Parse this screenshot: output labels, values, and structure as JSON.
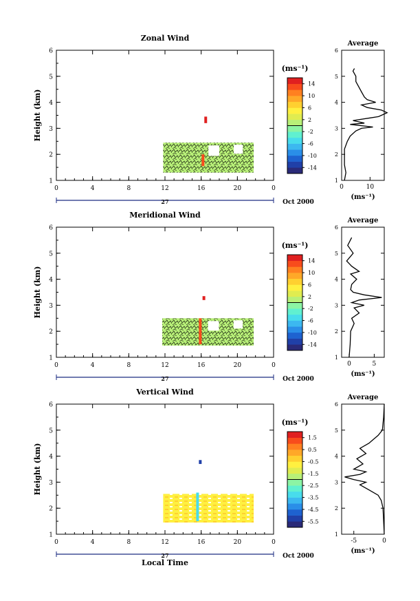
{
  "chart_data": [
    {
      "type": "heatmap",
      "title": "Zonal Wind",
      "ylabel": "Height (km)",
      "yticks": [
        "1",
        "2",
        "3",
        "4",
        "5",
        "6"
      ],
      "xticks": [
        "0",
        "4",
        "8",
        "12",
        "16",
        "20",
        "0"
      ],
      "xlim": [
        0,
        24
      ],
      "ylim": [
        1,
        6
      ],
      "date_day": "27",
      "date_month": "Oct 2000",
      "colorbar": {
        "unit": "(ms⁻¹)",
        "ticks": [
          "14",
          "10",
          "6",
          "2",
          "-2",
          "-6",
          "-10",
          "-14"
        ],
        "range": [
          -16,
          16
        ],
        "colors": [
          "#2a2a78",
          "#2040a8",
          "#1e62d0",
          "#2a8ee8",
          "#3cb8f0",
          "#48dcec",
          "#60f0d0",
          "#8cf4a4",
          "#b8f078",
          "#e0ec50",
          "#fff040",
          "#ffd030",
          "#ffa828",
          "#ff8020",
          "#f84c1c",
          "#e02020"
        ]
      },
      "data_region": {
        "x_start": 11.8,
        "x_end": 21.8,
        "y_bottom": 1.3,
        "y_top": 2.45,
        "dominant_value": 0
      },
      "spikes": [
        {
          "x": 16.2,
          "y_bottom": 1.55,
          "y_top": 2.0,
          "value": 12
        },
        {
          "x": 16.5,
          "y_bottom": 3.2,
          "y_top": 3.45,
          "value": 15
        }
      ],
      "average_profile": {
        "title": "Average",
        "xlabel": "(ms⁻¹)",
        "xticks": [
          "0",
          "10"
        ],
        "xlim": [
          0,
          15
        ],
        "heights": [
          1.0,
          1.3,
          1.6,
          1.9,
          2.2,
          2.5,
          2.7,
          2.9,
          3.0,
          3.05,
          3.15,
          3.2,
          3.3,
          3.4,
          3.45,
          3.55,
          3.6,
          3.7,
          3.8,
          3.9,
          4.0,
          4.1,
          4.2,
          4.4,
          4.6,
          4.8,
          5.0,
          5.2,
          5.3
        ],
        "values": [
          1,
          1.5,
          1,
          1,
          1,
          2,
          3,
          5,
          7,
          11,
          3,
          8,
          4,
          10,
          13,
          15,
          16,
          14,
          9,
          7,
          12,
          9,
          8,
          7,
          6,
          5,
          5,
          4,
          4.5
        ]
      }
    },
    {
      "type": "heatmap",
      "title": "Meridional Wind",
      "ylabel": "Height (km)",
      "yticks": [
        "1",
        "2",
        "3",
        "4",
        "5",
        "6"
      ],
      "xticks": [
        "0",
        "4",
        "8",
        "12",
        "16",
        "20",
        "0"
      ],
      "xlim": [
        0,
        24
      ],
      "ylim": [
        1,
        6
      ],
      "date_day": "27",
      "date_month": "Oct 2000",
      "colorbar": {
        "unit": "(ms⁻¹)",
        "ticks": [
          "14",
          "10",
          "6",
          "2",
          "-2",
          "-6",
          "-10",
          "-14"
        ],
        "range": [
          -16,
          16
        ],
        "colors": [
          "#2a2a78",
          "#2040a8",
          "#1e62d0",
          "#2a8ee8",
          "#3cb8f0",
          "#48dcec",
          "#60f0d0",
          "#8cf4a4",
          "#b8f078",
          "#e0ec50",
          "#fff040",
          "#ffd030",
          "#ffa828",
          "#ff8020",
          "#f84c1c",
          "#e02020"
        ]
      },
      "data_region": {
        "x_start": 11.7,
        "x_end": 21.8,
        "y_bottom": 1.45,
        "y_top": 2.5,
        "dominant_value": 0
      },
      "spikes": [
        {
          "x": 15.9,
          "y_bottom": 1.5,
          "y_top": 2.5,
          "value": 12
        },
        {
          "x": 16.3,
          "y_bottom": 3.2,
          "y_top": 3.35,
          "value": 15
        }
      ],
      "average_profile": {
        "title": "Average",
        "xlabel": "(ms⁻¹)",
        "xticks": [
          "0",
          "5"
        ],
        "xlim": [
          -1.5,
          7
        ],
        "heights": [
          1.0,
          1.5,
          2.0,
          2.3,
          2.5,
          2.7,
          2.9,
          3.0,
          3.1,
          3.2,
          3.3,
          3.4,
          3.5,
          3.6,
          3.8,
          4.0,
          4.2,
          4.3,
          4.5,
          4.7,
          5.0,
          5.3,
          5.6
        ],
        "values": [
          0,
          0.2,
          0.3,
          1,
          0.5,
          2,
          1,
          3,
          0.5,
          2,
          6.5,
          3,
          0.8,
          0.3,
          0.5,
          1.5,
          0.3,
          2,
          0.5,
          -0.5,
          0.8,
          -0.3,
          0.5
        ]
      }
    },
    {
      "type": "heatmap",
      "title": "Vertical Wind",
      "ylabel": "Height (km)",
      "xlabel": "Local Time",
      "yticks": [
        "1",
        "2",
        "3",
        "4",
        "5",
        "6"
      ],
      "xticks": [
        "0",
        "4",
        "8",
        "12",
        "16",
        "20",
        "0"
      ],
      "xlim": [
        0,
        24
      ],
      "ylim": [
        1,
        6
      ],
      "date_day": "27",
      "date_month": "Oct 2000",
      "colorbar": {
        "unit": "(ms⁻¹)",
        "ticks": [
          "1.5",
          "0.5",
          "-0.5",
          "-1.5",
          "-2.5",
          "-3.5",
          "-4.5",
          "-5.5"
        ],
        "range": [
          -6,
          2
        ],
        "colors": [
          "#2a2a78",
          "#2040a8",
          "#1e62d0",
          "#2a8ee8",
          "#3cb8f0",
          "#48dcec",
          "#60f0d0",
          "#8cf4a4",
          "#b8f078",
          "#e0ec50",
          "#fff040",
          "#ffd030",
          "#ffa828",
          "#ff8020",
          "#f84c1c",
          "#e02020"
        ]
      },
      "data_region": {
        "x_start": 11.8,
        "x_end": 21.8,
        "y_bottom": 1.45,
        "y_top": 2.55,
        "dominant_value": 0
      },
      "spikes": [
        {
          "x": 15.6,
          "y_bottom": 1.5,
          "y_top": 2.6,
          "value": -3.5
        },
        {
          "x": 15.9,
          "y_bottom": 3.7,
          "y_top": 3.85,
          "value": -5.5
        }
      ],
      "average_profile": {
        "title": "Average",
        "xlabel": "(ms⁻¹)",
        "xticks": [
          "-5",
          "0"
        ],
        "xlim": [
          -7,
          0
        ],
        "heights": [
          1.0,
          1.5,
          2.0,
          2.3,
          2.5,
          2.7,
          2.9,
          3.0,
          3.1,
          3.2,
          3.3,
          3.4,
          3.5,
          3.7,
          3.9,
          4.1,
          4.3,
          4.5,
          4.6,
          4.8,
          5.0,
          5.5,
          6.0
        ],
        "values": [
          0,
          -0.1,
          -0.2,
          -0.5,
          -1,
          -2.5,
          -4,
          -3,
          -5,
          -6.5,
          -4,
          -3,
          -5,
          -3.5,
          -4.5,
          -3,
          -4,
          -2.5,
          -2,
          -1,
          -0.3,
          -0.1,
          0
        ]
      }
    }
  ]
}
